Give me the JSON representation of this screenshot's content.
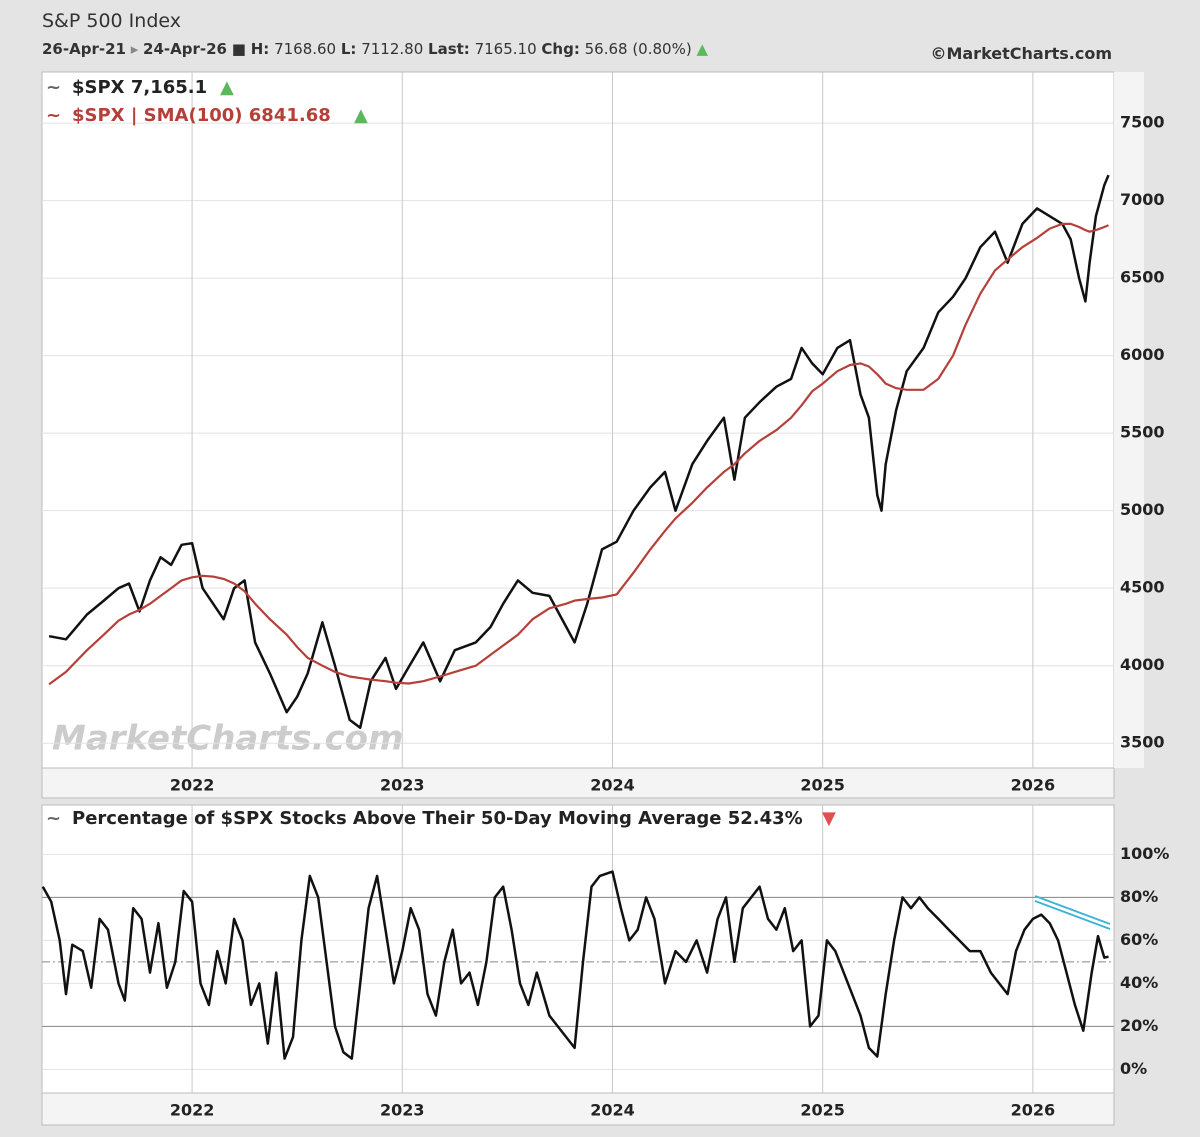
{
  "header": {
    "title": "S&P 500 Index",
    "start": "26-Apr-21",
    "end": "24-Apr-26",
    "high_label": "H:",
    "high": "7168.60",
    "low_label": "L:",
    "low": "7112.80",
    "last_label": "Last:",
    "last": "7165.10",
    "chg_label": "Chg:",
    "chg": "56.68 (0.80%)",
    "source": "©MarketCharts.com",
    "watermark": "MarketCharts.com"
  },
  "chart_data": [
    {
      "type": "line",
      "x": [
        2021.32,
        2021.4,
        2021.45,
        2021.5,
        2021.58,
        2021.65,
        2021.7,
        2021.75,
        2021.8,
        2021.85,
        2021.9,
        2021.95,
        2022.0,
        2022.05,
        2022.1,
        2022.15,
        2022.2,
        2022.25,
        2022.3,
        2022.37,
        2022.45,
        2022.5,
        2022.55,
        2022.62,
        2022.68,
        2022.75,
        2022.8,
        2022.85,
        2022.92,
        2022.97,
        2023.03,
        2023.1,
        2023.18,
        2023.25,
        2023.35,
        2023.42,
        2023.48,
        2023.55,
        2023.62,
        2023.7,
        2023.78,
        2023.82,
        2023.88,
        2023.95,
        2024.02,
        2024.1,
        2024.18,
        2024.25,
        2024.3,
        2024.38,
        2024.45,
        2024.53,
        2024.58,
        2024.63,
        2024.7,
        2024.78,
        2024.85,
        2024.9,
        2024.95,
        2025.0,
        2025.07,
        2025.13,
        2025.18,
        2025.22,
        2025.26,
        2025.28,
        2025.3,
        2025.35,
        2025.4,
        2025.48,
        2025.55,
        2025.62,
        2025.68,
        2025.75,
        2025.82,
        2025.88,
        2025.95,
        2026.02,
        2026.08,
        2026.14,
        2026.18,
        2026.22,
        2026.25,
        2026.27,
        2026.3,
        2026.34,
        2026.36
      ],
      "series": [
        {
          "name": "$SPX 7,165.1",
          "color": "#111111",
          "values": [
            4190,
            4170,
            4250,
            4330,
            4420,
            4500,
            4530,
            4350,
            4550,
            4700,
            4650,
            4780,
            4790,
            4500,
            4400,
            4300,
            4500,
            4550,
            4150,
            3950,
            3700,
            3800,
            3950,
            4280,
            4000,
            3650,
            3600,
            3900,
            4050,
            3850,
            3990,
            4150,
            3900,
            4100,
            4150,
            4250,
            4400,
            4550,
            4470,
            4450,
            4250,
            4150,
            4400,
            4750,
            4800,
            5000,
            5150,
            5250,
            5000,
            5300,
            5450,
            5600,
            5200,
            5600,
            5700,
            5800,
            5850,
            6050,
            5950,
            5880,
            6050,
            6100,
            5750,
            5600,
            5100,
            5000,
            5300,
            5650,
            5900,
            6050,
            6280,
            6380,
            6500,
            6700,
            6800,
            6600,
            6850,
            6950,
            6900,
            6850,
            6750,
            6500,
            6350,
            6600,
            6900,
            7100,
            7165
          ]
        },
        {
          "name": "$SPX | SMA(100) 6841.68",
          "color": "#b5403a",
          "values": [
            3880,
            3960,
            4030,
            4100,
            4200,
            4290,
            4330,
            4360,
            4400,
            4450,
            4500,
            4550,
            4570,
            4580,
            4575,
            4560,
            4530,
            4480,
            4400,
            4300,
            4200,
            4120,
            4050,
            4000,
            3960,
            3930,
            3920,
            3910,
            3900,
            3890,
            3885,
            3900,
            3930,
            3960,
            4000,
            4070,
            4130,
            4200,
            4300,
            4370,
            4400,
            4420,
            4430,
            4440,
            4460,
            4600,
            4750,
            4870,
            4950,
            5050,
            5150,
            5250,
            5300,
            5370,
            5450,
            5520,
            5600,
            5680,
            5770,
            5820,
            5900,
            5940,
            5950,
            5930,
            5880,
            5850,
            5820,
            5790,
            5780,
            5780,
            5850,
            6000,
            6200,
            6400,
            6550,
            6620,
            6700,
            6760,
            6820,
            6850,
            6850,
            6830,
            6810,
            6800,
            6810,
            6830,
            6842
          ]
        }
      ],
      "xlim": [
        2021.286,
        2026.386
      ],
      "xticks": [
        2022,
        2023,
        2024,
        2025,
        2026
      ],
      "ylim": [
        3340,
        7830
      ],
      "yticks": [
        3500,
        4000,
        4500,
        5000,
        5500,
        6000,
        6500,
        7000,
        7500
      ],
      "grid": true
    },
    {
      "type": "line",
      "x": [
        2021.29,
        2021.33,
        2021.37,
        2021.4,
        2021.43,
        2021.48,
        2021.52,
        2021.56,
        2021.6,
        2021.65,
        2021.68,
        2021.72,
        2021.76,
        2021.8,
        2021.84,
        2021.88,
        2021.92,
        2021.96,
        2022.0,
        2022.04,
        2022.08,
        2022.12,
        2022.16,
        2022.2,
        2022.24,
        2022.28,
        2022.32,
        2022.36,
        2022.4,
        2022.44,
        2022.48,
        2022.52,
        2022.56,
        2022.6,
        2022.64,
        2022.68,
        2022.72,
        2022.76,
        2022.8,
        2022.84,
        2022.88,
        2022.92,
        2022.96,
        2023.0,
        2023.04,
        2023.08,
        2023.12,
        2023.16,
        2023.2,
        2023.24,
        2023.28,
        2023.32,
        2023.36,
        2023.4,
        2023.44,
        2023.48,
        2023.52,
        2023.56,
        2023.6,
        2023.64,
        2023.7,
        2023.74,
        2023.78,
        2023.82,
        2023.86,
        2023.9,
        2023.94,
        2024.0,
        2024.04,
        2024.08,
        2024.12,
        2024.16,
        2024.2,
        2024.25,
        2024.3,
        2024.35,
        2024.4,
        2024.45,
        2024.5,
        2024.54,
        2024.58,
        2024.62,
        2024.66,
        2024.7,
        2024.74,
        2024.78,
        2024.82,
        2024.86,
        2024.9,
        2024.94,
        2024.98,
        2025.02,
        2025.06,
        2025.1,
        2025.14,
        2025.18,
        2025.22,
        2025.26,
        2025.3,
        2025.34,
        2025.38,
        2025.42,
        2025.46,
        2025.5,
        2025.55,
        2025.6,
        2025.65,
        2025.7,
        2025.75,
        2025.8,
        2025.84,
        2025.88,
        2025.92,
        2025.96,
        2026.0,
        2026.04,
        2026.08,
        2026.12,
        2026.16,
        2026.2,
        2026.24,
        2026.28,
        2026.31,
        2026.34,
        2026.36
      ],
      "series": [
        {
          "name": "Percentage of $SPX Stocks Above Their 50-Day Moving Average 52.43%",
          "color": "#111111",
          "values": [
            85,
            78,
            60,
            35,
            58,
            55,
            38,
            70,
            65,
            40,
            32,
            75,
            70,
            45,
            68,
            38,
            50,
            83,
            78,
            40,
            30,
            55,
            40,
            70,
            60,
            30,
            40,
            12,
            45,
            5,
            15,
            60,
            90,
            80,
            50,
            20,
            8,
            5,
            40,
            75,
            90,
            65,
            40,
            55,
            75,
            65,
            35,
            25,
            50,
            65,
            40,
            45,
            30,
            50,
            80,
            85,
            65,
            40,
            30,
            45,
            25,
            20,
            15,
            10,
            50,
            85,
            90,
            92,
            75,
            60,
            65,
            80,
            70,
            40,
            55,
            50,
            60,
            45,
            70,
            80,
            50,
            75,
            80,
            85,
            70,
            65,
            75,
            55,
            60,
            20,
            25,
            60,
            55,
            45,
            35,
            25,
            10,
            6,
            35,
            60,
            80,
            75,
            80,
            75,
            70,
            65,
            60,
            55,
            55,
            45,
            40,
            35,
            55,
            65,
            70,
            72,
            68,
            60,
            45,
            30,
            18,
            45,
            62,
            52,
            52.43
          ]
        }
      ],
      "reference_lines": [
        20,
        50,
        80
      ],
      "xlim": [
        2021.286,
        2026.386
      ],
      "xticks": [
        2022,
        2023,
        2024,
        2025,
        2026
      ],
      "ylim": [
        -11,
        123
      ],
      "yticks": [
        {
          "value": 0,
          "label": "0%"
        },
        {
          "value": 20,
          "label": "20%"
        },
        {
          "value": 40,
          "label": "40%"
        },
        {
          "value": 60,
          "label": "60%"
        },
        {
          "value": 80,
          "label": "80%"
        },
        {
          "value": 100,
          "label": "100%"
        }
      ],
      "grid": true
    }
  ]
}
